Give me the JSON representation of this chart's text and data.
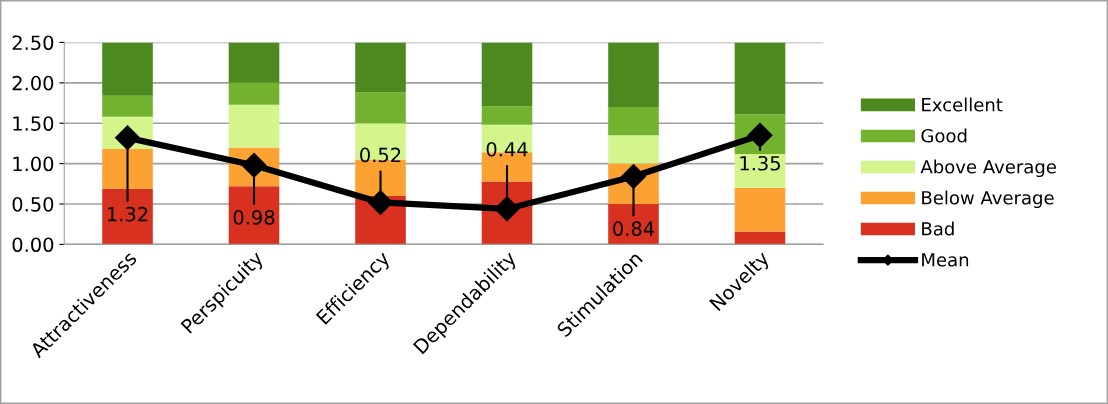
{
  "chart_data": {
    "type": "bar",
    "stacked": true,
    "categories": [
      "Attractiveness",
      "Perspicuity",
      "Efficiency",
      "Dependability",
      "Stimulation",
      "Novelty"
    ],
    "series": [
      {
        "name": "Bad",
        "color": "#d9311f",
        "values": [
          0.69,
          0.72,
          0.6,
          0.78,
          0.5,
          0.16
        ]
      },
      {
        "name": "Below Average",
        "color": "#fca232",
        "values": [
          0.49,
          0.48,
          0.45,
          0.36,
          0.5,
          0.54
        ]
      },
      {
        "name": "Above Average",
        "color": "#d3f58b",
        "values": [
          0.4,
          0.53,
          0.45,
          0.34,
          0.35,
          0.42
        ]
      },
      {
        "name": "Good",
        "color": "#72b22f",
        "values": [
          0.26,
          0.27,
          0.38,
          0.23,
          0.35,
          0.49
        ]
      },
      {
        "name": "Excellent",
        "color": "#4c8a1f",
        "values": [
          0.66,
          0.5,
          0.62,
          0.79,
          0.8,
          0.89
        ]
      },
      {
        "name": "Mean",
        "type": "line",
        "color": "#000000",
        "marker": "diamond",
        "data_labels": true,
        "values": [
          1.32,
          0.98,
          0.52,
          0.44,
          0.84,
          1.35
        ]
      }
    ],
    "ylim": [
      0,
      2.5
    ],
    "yticks": [
      {
        "value": 0,
        "label": "0.00"
      },
      {
        "value": 0.5,
        "label": "0.50"
      },
      {
        "value": 1,
        "label": "1.00"
      },
      {
        "value": 1.5,
        "label": "1.50"
      },
      {
        "value": 2,
        "label": "2.00"
      },
      {
        "value": 2.5,
        "label": "2.50"
      }
    ],
    "grid": "y",
    "legend": "right"
  }
}
